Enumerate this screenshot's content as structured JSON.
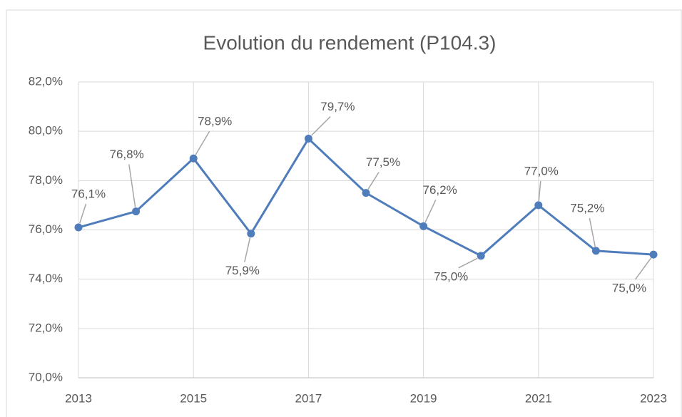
{
  "chart_data": {
    "type": "line",
    "title": "Evolution du rendement (P104.3)",
    "x": [
      2013,
      2014,
      2015,
      2016,
      2017,
      2018,
      2019,
      2020,
      2021,
      2022,
      2023
    ],
    "series": [
      {
        "name": "Rendement",
        "color": "#4f7cba",
        "values": [
          76.1,
          76.75,
          78.9,
          75.85,
          79.7,
          77.5,
          76.15,
          74.95,
          77.0,
          75.15,
          75.0
        ],
        "value_labels": [
          "76,1%",
          "76,8%",
          "78,9%",
          "75,9%",
          "79,7%",
          "77,5%",
          "76,2%",
          "75,0%",
          "77,0%",
          "75,2%",
          "75,0%"
        ]
      }
    ],
    "xlim": [
      2013,
      2023
    ],
    "xticks": [
      2013,
      2015,
      2017,
      2019,
      2021,
      2023
    ],
    "ylim": [
      70,
      82
    ],
    "yticks": [
      {
        "value": 70,
        "label": "70,0%"
      },
      {
        "value": 72,
        "label": "72,0%"
      },
      {
        "value": 74,
        "label": "74,0%"
      },
      {
        "value": 76,
        "label": "76,0%"
      },
      {
        "value": 78,
        "label": "78,0%"
      },
      {
        "value": 80,
        "label": "80,0%"
      },
      {
        "value": 82,
        "label": "82,0%"
      }
    ],
    "grid": true
  }
}
